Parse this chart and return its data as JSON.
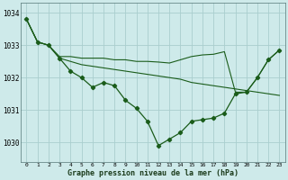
{
  "title": "Graphe pression niveau de la mer (hPa)",
  "bg_color": "#ceeaea",
  "grid_color": "#aacece",
  "line_color": "#1a5c1a",
  "xlim": [
    -0.5,
    23.5
  ],
  "ylim": [
    1029.4,
    1034.3
  ],
  "yticks": [
    1030,
    1031,
    1032,
    1033,
    1034
  ],
  "xticks": [
    0,
    1,
    2,
    3,
    4,
    5,
    6,
    7,
    8,
    9,
    10,
    11,
    12,
    13,
    14,
    15,
    16,
    17,
    18,
    19,
    20,
    21,
    22,
    23
  ],
  "series_main": [
    1033.8,
    1033.1,
    1033.0,
    1032.6,
    1032.2,
    1032.0,
    1031.7,
    1031.85,
    1031.75,
    1031.3,
    1031.05,
    1030.65,
    1029.9,
    1030.1,
    1030.3,
    1030.65,
    1030.7,
    1030.75,
    1030.9,
    1031.5,
    1031.55,
    1032.0,
    1032.55,
    1032.85
  ],
  "series_top": [
    1033.8,
    1033.1,
    1033.0,
    1032.65,
    1032.65,
    1032.6,
    1032.6,
    1032.6,
    1032.55,
    1032.55,
    1032.5,
    1032.5,
    1032.48,
    1032.45,
    1032.55,
    1032.65,
    1032.7,
    1032.72,
    1032.8,
    1031.55,
    1031.55,
    1032.0,
    1032.55,
    1032.85
  ],
  "series_bottom": [
    1033.8,
    1033.1,
    1033.0,
    1032.6,
    1032.5,
    1032.4,
    1032.35,
    1032.3,
    1032.25,
    1032.2,
    1032.15,
    1032.1,
    1032.05,
    1032.0,
    1031.95,
    1031.85,
    1031.8,
    1031.75,
    1031.7,
    1031.65,
    1031.6,
    1031.55,
    1031.5,
    1031.45
  ]
}
